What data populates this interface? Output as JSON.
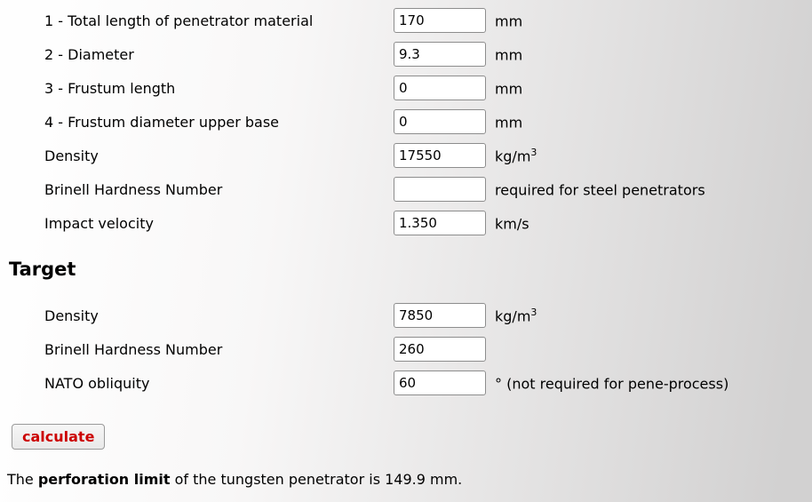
{
  "colors": {
    "accent_red": "#cc0000",
    "background_left": "#fefefe",
    "background_right": "#d2d1d1"
  },
  "penetrator": {
    "rows": [
      {
        "label": "1 - Total length of penetrator material",
        "value": "170",
        "unit": "mm",
        "unit_sup": ""
      },
      {
        "label": "2 - Diameter",
        "value": "9.3",
        "unit": "mm",
        "unit_sup": ""
      },
      {
        "label": "3 - Frustum length",
        "value": "0",
        "unit": "mm",
        "unit_sup": ""
      },
      {
        "label": "4 - Frustum diameter upper base",
        "value": "0",
        "unit": "mm",
        "unit_sup": ""
      },
      {
        "label": "Density",
        "value": "17550",
        "unit": "kg/m",
        "unit_sup": "3"
      },
      {
        "label": "Brinell Hardness Number",
        "value": "",
        "unit": "required for steel penetrators",
        "unit_sup": ""
      },
      {
        "label": "Impact velocity",
        "value": "1.350",
        "unit": "km/s",
        "unit_sup": ""
      }
    ]
  },
  "target": {
    "heading": "Target",
    "rows": [
      {
        "label": "Density",
        "value": "7850",
        "unit": "kg/m",
        "unit_sup": "3"
      },
      {
        "label": "Brinell Hardness Number",
        "value": "260",
        "unit": "",
        "unit_sup": ""
      },
      {
        "label": "NATO obliquity",
        "value": "60",
        "unit": "° (not required for pene-process)",
        "unit_sup": ""
      }
    ]
  },
  "actions": {
    "calculate_label": "calculate"
  },
  "result": {
    "prefix": "The ",
    "bold": "perforation limit",
    "suffix": " of the tungsten penetrator is 149.9 mm."
  }
}
